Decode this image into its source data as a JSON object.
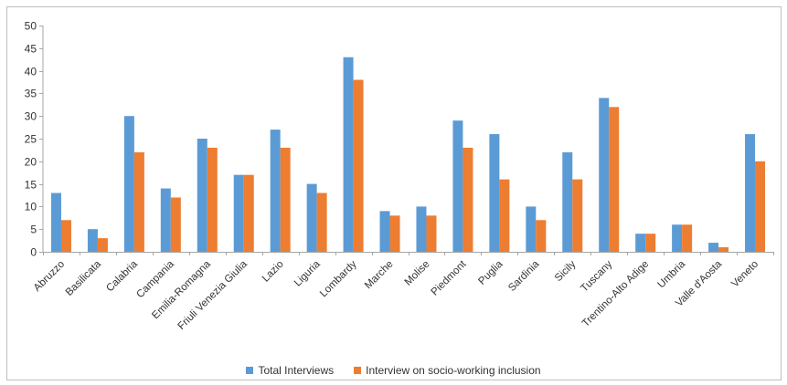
{
  "chart_data": {
    "type": "bar",
    "title": "",
    "xlabel": "",
    "ylabel": "",
    "ylim": [
      0,
      50
    ],
    "yticks": [
      0,
      5,
      10,
      15,
      20,
      25,
      30,
      35,
      40,
      45,
      50
    ],
    "grid": false,
    "legend_position": "bottom",
    "categories": [
      "Abruzzo",
      "Basilicata",
      "Calabria",
      "Campania",
      "Emilia-Romagna",
      "Friuli Venezia Giulia",
      "Lazio",
      "Liguria",
      "Lombardy",
      "Marche",
      "Molise",
      "Piedmont",
      "Puglia",
      "Sardinia",
      "Sicily",
      "Tuscany",
      "Trentino-Alto Adige",
      "Umbria",
      "Valle d'Aosta",
      "Veneto"
    ],
    "series": [
      {
        "name": "Total Interviews",
        "color": "#5b9bd5",
        "values": [
          13,
          5,
          30,
          14,
          25,
          17,
          27,
          15,
          43,
          9,
          10,
          29,
          26,
          10,
          22,
          34,
          4,
          6,
          2,
          26
        ]
      },
      {
        "name": "Interview on socio-working inclusion",
        "color": "#ed7d31",
        "values": [
          7,
          3,
          22,
          12,
          23,
          17,
          23,
          13,
          38,
          8,
          8,
          23,
          16,
          7,
          16,
          32,
          4,
          6,
          1,
          20
        ]
      }
    ]
  }
}
